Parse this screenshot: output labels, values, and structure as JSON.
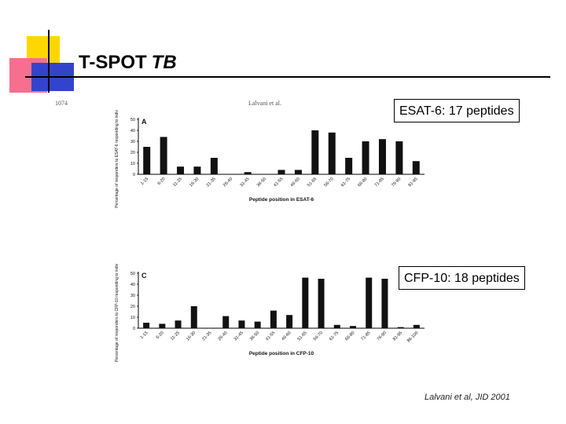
{
  "slide": {
    "title": "T-SPOT",
    "title_italic": "TB",
    "citation": "Lalvani et al, JID 2001",
    "colors": {
      "yellow_block": "#ffd700",
      "pink_block": "#f76f8e",
      "blue_block": "#3344cc",
      "bars": "#111111"
    }
  },
  "scan": {
    "left_header": "1074",
    "right_header": "Lalvani et al."
  },
  "callouts": {
    "esat": "ESAT-6: 17 peptides",
    "cfp": "CFP-10: 18 peptides"
  },
  "chart_data": [
    {
      "type": "bar",
      "panel_label": "A",
      "ylabel": "Percentage of responders to ESAT-6 responding to individual peptides",
      "xlabel": "Peptide position in ESAT-6",
      "ylim": [
        0,
        50
      ],
      "yticks": [
        0,
        10,
        20,
        30,
        40,
        50
      ],
      "categories": [
        "1-15",
        "6-20",
        "11-25",
        "16-30",
        "21-35",
        "26-40",
        "31-45",
        "36-50",
        "41-55",
        "46-60",
        "51-65",
        "56-70",
        "61-75",
        "66-80",
        "71-85",
        "76-90",
        "81-95"
      ],
      "values": [
        25,
        34,
        7,
        7,
        15,
        0,
        2,
        0,
        4,
        4,
        40,
        38,
        15,
        30,
        32,
        30,
        12
      ]
    },
    {
      "type": "bar",
      "panel_label": "C",
      "ylabel": "Percentage of responders to CFP-10 responding to individual peptides",
      "xlabel": "Peptide position in CFP-10",
      "ylim": [
        0,
        50
      ],
      "yticks": [
        0,
        10,
        20,
        30,
        40,
        50
      ],
      "categories": [
        "1-15",
        "6-20",
        "11-25",
        "16-30",
        "21-35",
        "26-40",
        "31-45",
        "36-50",
        "41-55",
        "46-60",
        "51-65",
        "56-70",
        "61-75",
        "66-80",
        "71-85",
        "76-90",
        "81-95",
        "86-100"
      ],
      "values": [
        5,
        4,
        7,
        20,
        0,
        11,
        7,
        6,
        16,
        12,
        46,
        45,
        3,
        2,
        46,
        45,
        1,
        3
      ]
    }
  ]
}
